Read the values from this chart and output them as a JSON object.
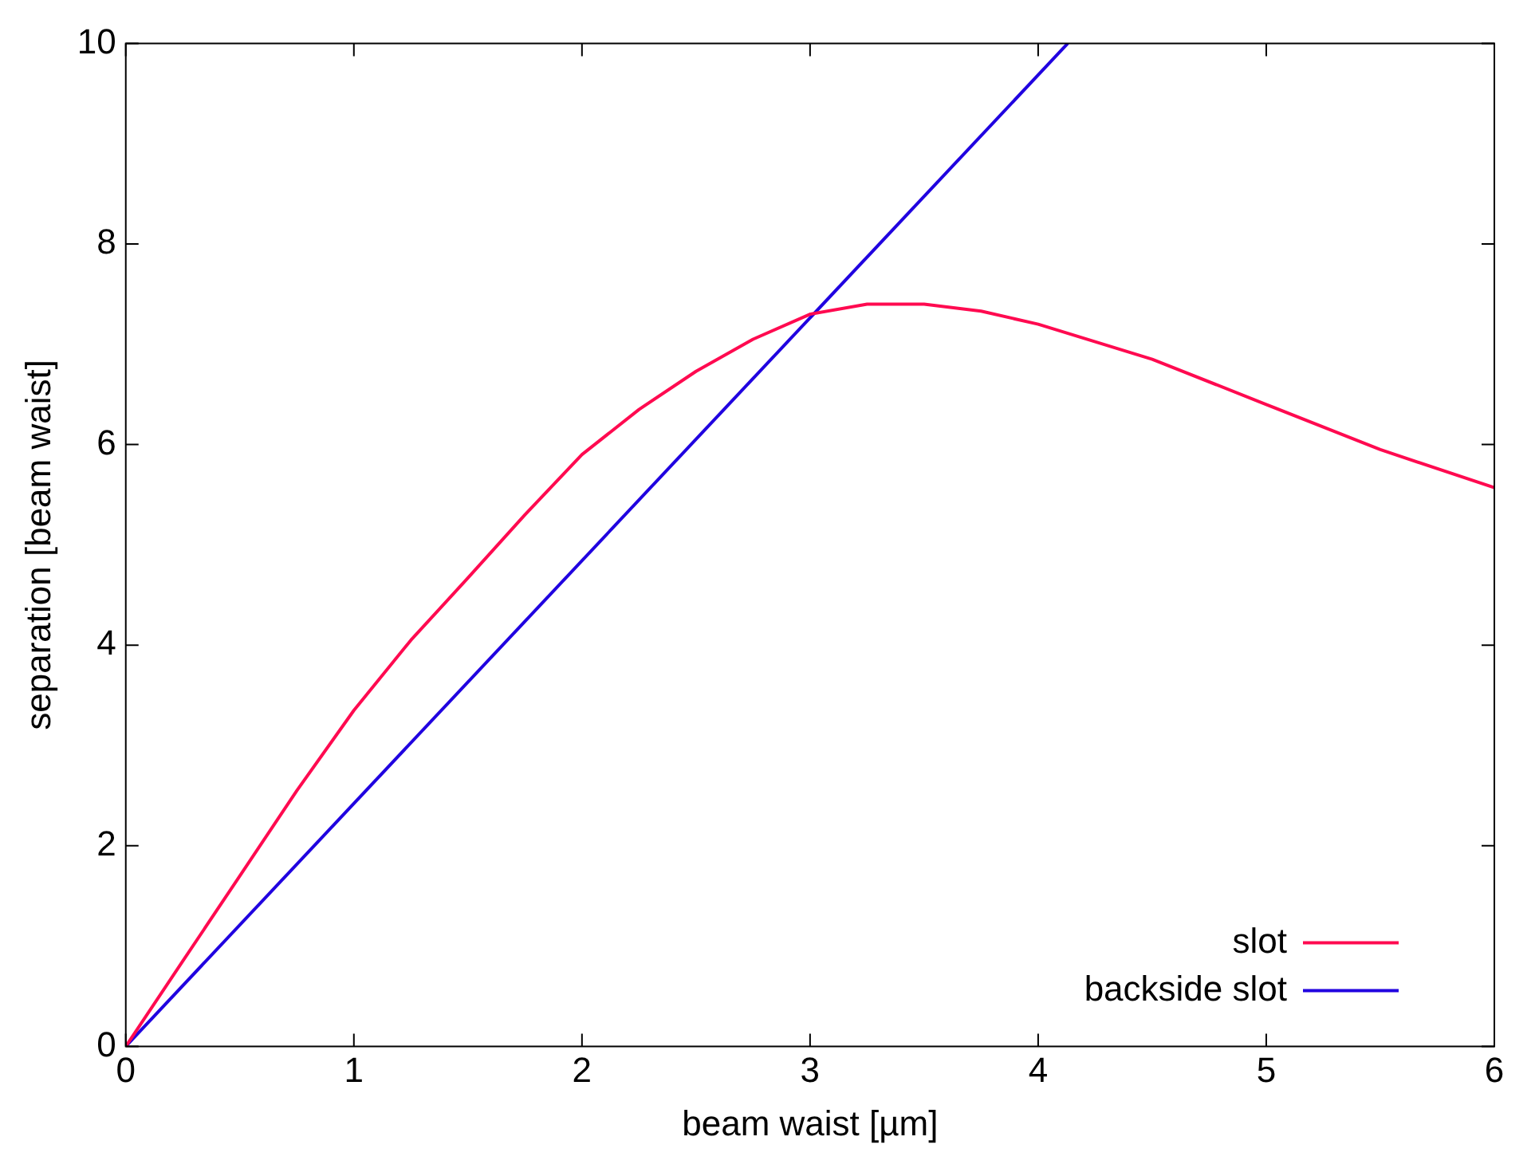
{
  "chart_data": {
    "type": "line",
    "xlabel": "beam waist [µm]",
    "ylabel": "separation [beam waist]",
    "xlim": [
      0,
      6
    ],
    "xticks": [
      0,
      1,
      2,
      3,
      4,
      5,
      6
    ],
    "ylim": [
      0,
      10
    ],
    "yticks": [
      0,
      2,
      4,
      6,
      8,
      10
    ],
    "grid": false,
    "legend": "bottom right",
    "marker": "none",
    "line_style": "solid",
    "series": [
      {
        "name": "slot",
        "color": "#ff0a50",
        "x": [
          0,
          0.25,
          0.5,
          0.75,
          1,
          1.25,
          1.5,
          1.75,
          2,
          2.25,
          2.5,
          2.75,
          3,
          3.25,
          3.5,
          3.75,
          4,
          4.5,
          5,
          5.5,
          6
        ],
        "values": [
          0,
          0.85,
          1.7,
          2.55,
          3.35,
          4.05,
          4.67,
          5.3,
          5.9,
          6.35,
          6.73,
          7.05,
          7.3,
          7.4,
          7.4,
          7.33,
          7.2,
          6.85,
          6.4,
          5.95,
          5.57
        ]
      },
      {
        "name": "backside slot",
        "color": "#2000e0",
        "x": [
          0,
          4.13
        ],
        "values": [
          0,
          10
        ]
      }
    ]
  }
}
